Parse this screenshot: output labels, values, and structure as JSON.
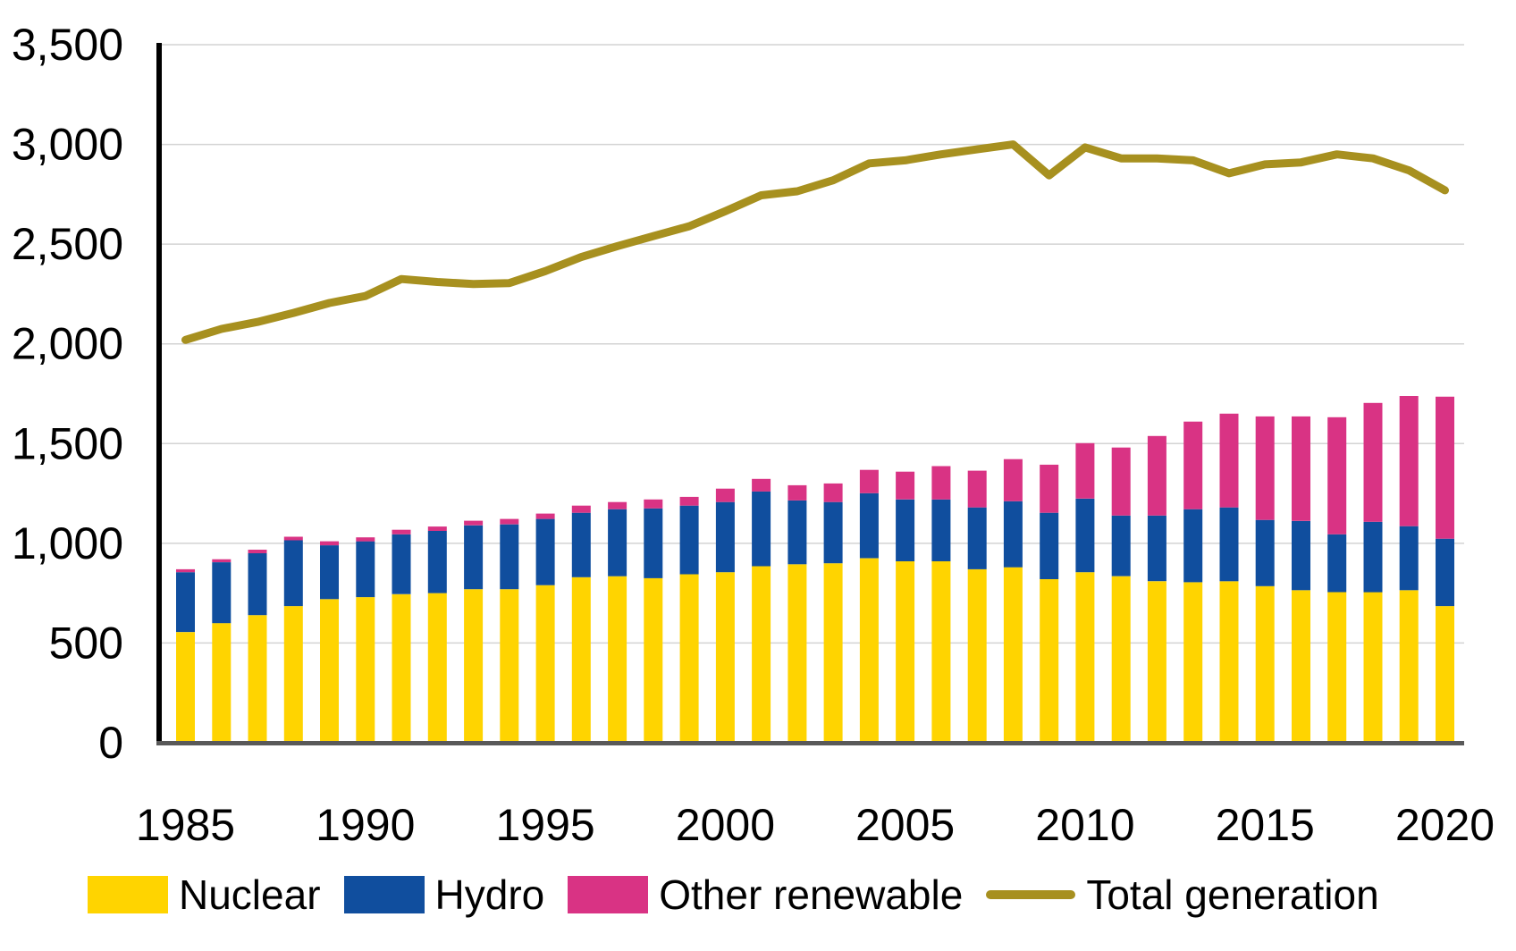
{
  "chart_data": {
    "type": "bar",
    "subtype": "stacked-bar-with-total-line",
    "title": "",
    "x": [
      1985,
      1986,
      1987,
      1988,
      1989,
      1990,
      1991,
      1992,
      1993,
      1994,
      1995,
      1996,
      1997,
      1998,
      1999,
      2000,
      2001,
      2002,
      2003,
      2004,
      2005,
      2006,
      2007,
      2008,
      2009,
      2010,
      2011,
      2012,
      2013,
      2014,
      2015,
      2016,
      2017,
      2018,
      2019,
      2020
    ],
    "series": [
      {
        "name": "Nuclear",
        "kind": "bar",
        "color": "#FFD400",
        "values": [
          555,
          600,
          640,
          685,
          720,
          730,
          745,
          750,
          770,
          770,
          790,
          830,
          835,
          825,
          845,
          855,
          885,
          895,
          900,
          925,
          910,
          910,
          870,
          880,
          820,
          855,
          835,
          810,
          805,
          810,
          785,
          765,
          755,
          755,
          765,
          685
        ]
      },
      {
        "name": "Hydro",
        "kind": "bar",
        "color": "#104E9E",
        "values": [
          300,
          305,
          310,
          330,
          270,
          280,
          300,
          312,
          320,
          325,
          332,
          323,
          336,
          350,
          344,
          352,
          375,
          320,
          307,
          326,
          310,
          310,
          310,
          331,
          333,
          369,
          304,
          329,
          366,
          370,
          332,
          347,
          290,
          353,
          321,
          338
        ]
      },
      {
        "name": "Other renewable",
        "kind": "bar",
        "color": "#D93384",
        "values": [
          15,
          15,
          18,
          18,
          20,
          20,
          23,
          22,
          23,
          27,
          27,
          36,
          36,
          45,
          44,
          67,
          63,
          76,
          93,
          117,
          139,
          167,
          184,
          211,
          241,
          278,
          341,
          399,
          439,
          470,
          519,
          524,
          587,
          596,
          653,
          712
        ]
      },
      {
        "name": "Total generation",
        "kind": "line",
        "color": "#A7901F",
        "values": [
          2020,
          2075,
          2110,
          2155,
          2205,
          2240,
          2325,
          2310,
          2300,
          2305,
          2365,
          2435,
          2490,
          2540,
          2590,
          2665,
          2745,
          2765,
          2820,
          2905,
          2920,
          2950,
          2975,
          3000,
          2845,
          2985,
          2930,
          2930,
          2920,
          2855,
          2900,
          2910,
          2950,
          2930,
          2870,
          2770
        ]
      }
    ],
    "ylim": [
      0,
      3500
    ],
    "yticklabels": [
      "0",
      "500",
      "1,000",
      "1,500",
      "2,000",
      "2,500",
      "3,000",
      "3,500"
    ],
    "xticklabels": [
      "1985",
      "1990",
      "1995",
      "2000",
      "2005",
      "2010",
      "2015",
      "2020"
    ],
    "xtick_indices": [
      0,
      5,
      10,
      15,
      20,
      25,
      30,
      35
    ],
    "grid": true,
    "gridline_color": "#D3D3D3",
    "axis_left_color": "#000000",
    "axis_bottom_color": "#595959",
    "legend_position": "bottom"
  },
  "legend": {
    "items": [
      {
        "label": "Nuclear"
      },
      {
        "label": "Hydro"
      },
      {
        "label": "Other renewable"
      },
      {
        "label": "Total generation"
      }
    ]
  }
}
